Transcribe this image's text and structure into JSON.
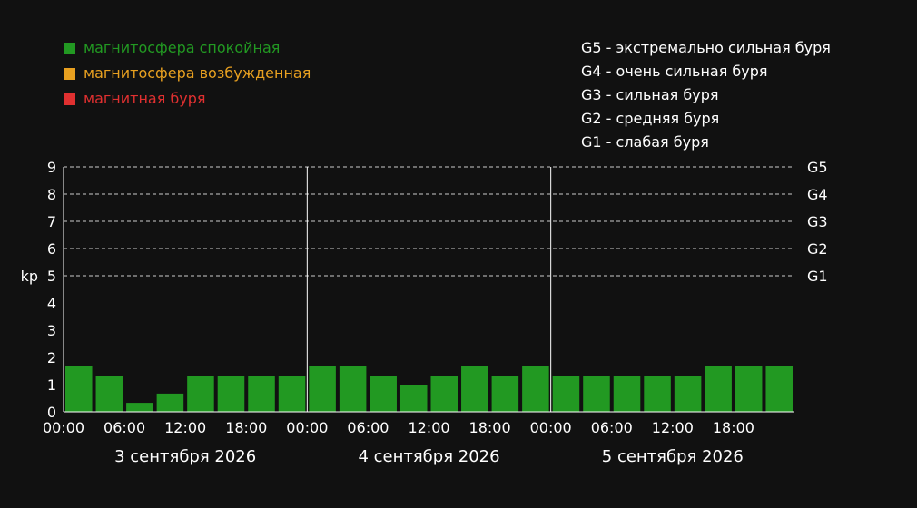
{
  "legend": {
    "items": [
      {
        "label": "магнитосфера спокойная",
        "color": "#229922"
      },
      {
        "label": "магнитосфера возбужденная",
        "color": "#e8a020"
      },
      {
        "label": "магнитная буря",
        "color": "#e03030"
      }
    ]
  },
  "storm_levels": [
    "G5 - экстремально сильная буря",
    "G4 - очень сильная буря",
    "G3 - сильная буря",
    "G2 - средняя буря",
    "G1 - слабая буря"
  ],
  "chart_data": {
    "type": "bar",
    "ylabel": "kp",
    "ylim": [
      0,
      9
    ],
    "yticks": [
      "0",
      "1",
      "2",
      "3",
      "4",
      "5",
      "6",
      "7",
      "8",
      "9"
    ],
    "right_labels": [
      {
        "y": 9,
        "label": "G5"
      },
      {
        "y": 8,
        "label": "G4"
      },
      {
        "y": 7,
        "label": "G3"
      },
      {
        "y": 6,
        "label": "G2"
      },
      {
        "y": 5,
        "label": "G1"
      }
    ],
    "days": [
      {
        "date": "3 сентября 2026",
        "values": [
          1.67,
          1.33,
          0.33,
          0.67,
          1.33,
          1.33,
          1.33,
          1.33
        ]
      },
      {
        "date": "4 сентября 2026",
        "values": [
          1.67,
          1.67,
          1.33,
          1.0,
          1.33,
          1.67,
          1.33,
          1.67
        ]
      },
      {
        "date": "5 сентября 2026",
        "values": [
          1.33,
          1.33,
          1.33,
          1.33,
          1.33,
          1.67,
          1.67,
          1.67
        ]
      }
    ],
    "xticks": [
      "00:00",
      "06:00",
      "12:00",
      "18:00"
    ],
    "colors": {
      "bar": "#229922",
      "axis": "#ffffff",
      "grid": "#cccccc",
      "ylabel": "#e8a020"
    }
  }
}
